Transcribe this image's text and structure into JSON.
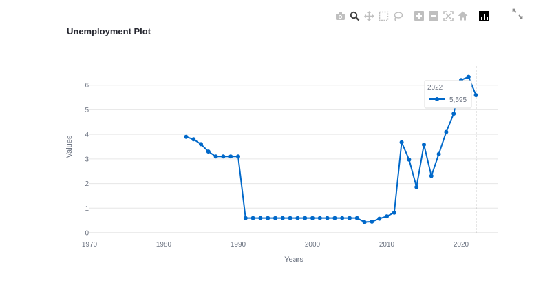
{
  "page": {
    "title": "Unemployment Plot"
  },
  "toolbar": {
    "buttons": [
      {
        "name": "camera-icon",
        "color": "#bfbfbf"
      },
      {
        "name": "zoom-icon",
        "color": "#444444"
      },
      {
        "name": "pan-icon",
        "color": "#bfbfbf"
      },
      {
        "name": "box-select-icon",
        "color": "#bfbfbf"
      },
      {
        "name": "lasso-select-icon",
        "color": "#bfbfbf"
      },
      {
        "name": "zoom-in-icon",
        "color": "#bfbfbf"
      },
      {
        "name": "zoom-out-icon",
        "color": "#bfbfbf"
      },
      {
        "name": "autoscale-icon",
        "color": "#bfbfbf"
      },
      {
        "name": "reset-axes-icon",
        "color": "#bfbfbf"
      },
      {
        "name": "plotly-logo-icon",
        "color": "#000000"
      }
    ],
    "fullscreen_icon": "fullscreen-icon"
  },
  "chart_data": {
    "type": "line",
    "title": "Unemployment Plot",
    "xlabel": "Years",
    "ylabel": "Values",
    "xlim": [
      1970,
      2025
    ],
    "ylim": [
      0,
      7
    ],
    "xticks": [
      1970,
      1980,
      1990,
      2000,
      2010,
      2020
    ],
    "yticks": [
      0,
      1,
      2,
      3,
      4,
      5,
      6
    ],
    "grid": "horizontal",
    "line_color": "#0068c9",
    "series": [
      {
        "x": [
          1983,
          1984,
          1985,
          1986,
          1987,
          1988,
          1989,
          1990,
          1991,
          1992,
          1993,
          1994,
          1995,
          1996,
          1997,
          1998,
          1999,
          2000,
          2001,
          2002,
          2003,
          2004,
          2005,
          2006,
          2007,
          2008,
          2009,
          2010,
          2011,
          2012,
          2013,
          2014,
          2015,
          2016,
          2017,
          2018,
          2019,
          2020,
          2021,
          2022
        ],
        "y": [
          3.9,
          3.8,
          3.6,
          3.3,
          3.1,
          3.1,
          3.1,
          3.1,
          0.6,
          0.6,
          0.6,
          0.6,
          0.6,
          0.6,
          0.6,
          0.6,
          0.6,
          0.6,
          0.6,
          0.6,
          0.6,
          0.6,
          0.6,
          0.6,
          0.43,
          0.45,
          0.57,
          0.67,
          0.82,
          3.68,
          2.97,
          1.86,
          3.58,
          2.31,
          3.2,
          4.1,
          4.84,
          6.21,
          6.34,
          5.595
        ]
      }
    ],
    "hover": {
      "x": 2022,
      "x_label": "2022",
      "value_label": "5,595",
      "spike_line": "dashed"
    }
  }
}
